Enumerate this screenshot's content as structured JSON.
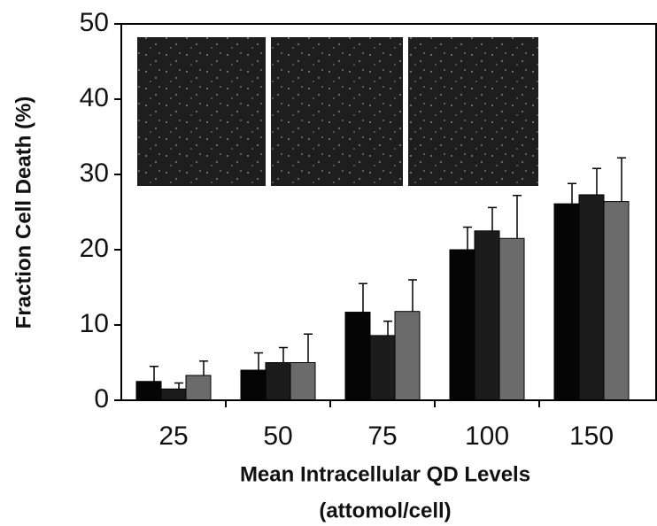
{
  "chart_data": {
    "type": "bar",
    "ylabel": "Fraction Cell Death (%)",
    "xlabel": [
      "Mean Intracellular QD Levels",
      "(attomol/cell)"
    ],
    "categories": [
      "25",
      "50",
      "75",
      "100",
      "150"
    ],
    "series": [
      {
        "color": "#050505",
        "values": [
          2.5,
          4.0,
          11.7,
          20.0,
          26.1
        ],
        "errors": [
          2.0,
          2.3,
          3.8,
          3.0,
          2.7
        ]
      },
      {
        "color": "#1c1c1c",
        "values": [
          1.5,
          5.0,
          8.6,
          22.5,
          27.3
        ],
        "errors": [
          0.8,
          2.0,
          1.9,
          3.1,
          3.5
        ]
      },
      {
        "color": "#6b6b6b",
        "values": [
          3.3,
          5.0,
          11.8,
          21.5,
          26.4
        ],
        "errors": [
          1.9,
          3.8,
          4.2,
          5.7,
          5.8
        ]
      }
    ],
    "ylim": [
      0,
      50
    ],
    "yticks": [
      0,
      10,
      20,
      30,
      40,
      50
    ]
  }
}
